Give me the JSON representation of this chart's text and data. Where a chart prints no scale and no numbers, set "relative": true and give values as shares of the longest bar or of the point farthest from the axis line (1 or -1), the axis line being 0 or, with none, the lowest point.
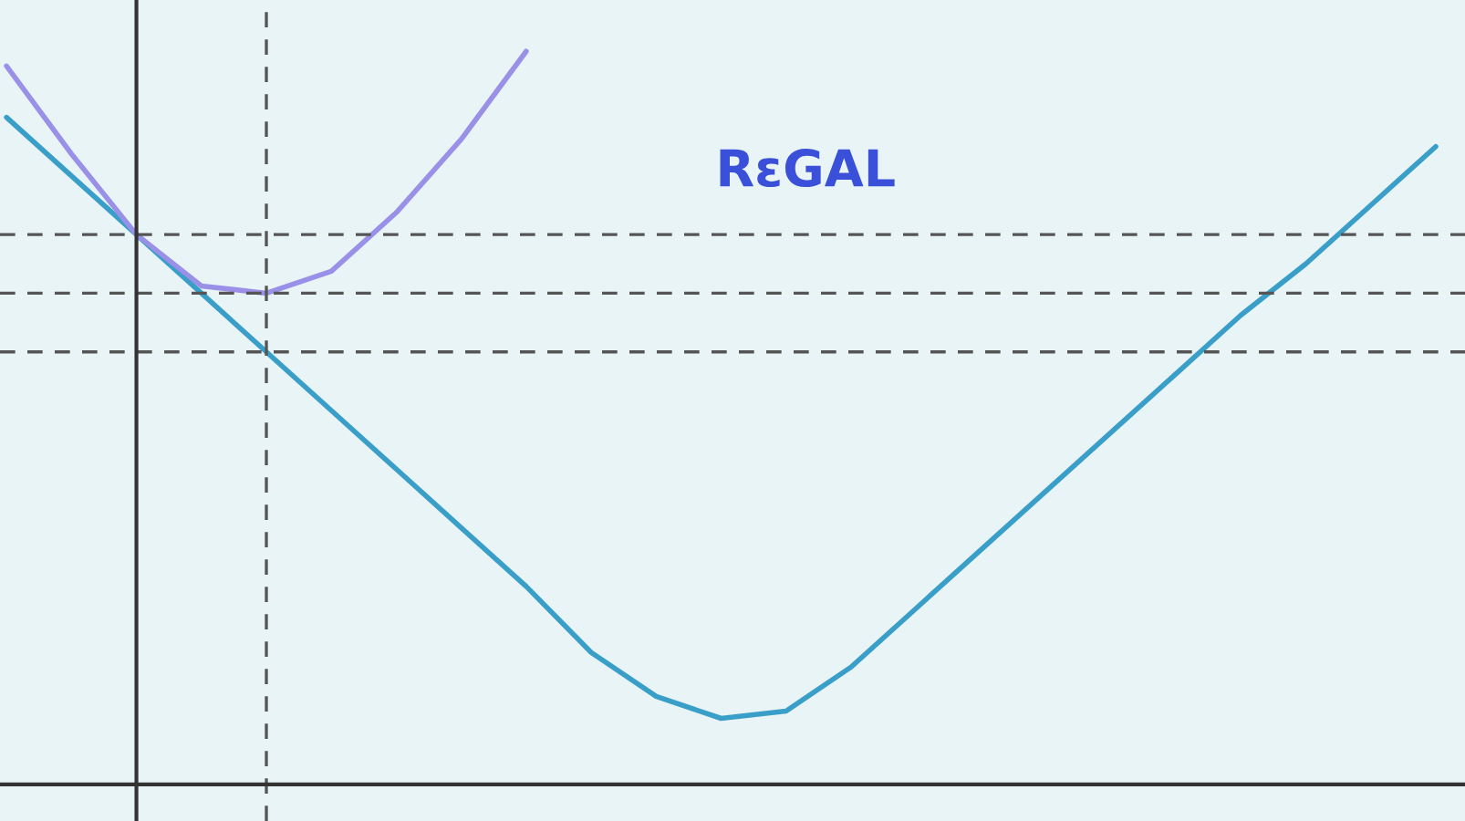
{
  "chart_data": {
    "type": "line",
    "relative": true,
    "categories": [
      null,
      null,
      null,
      null,
      null,
      null,
      null,
      null,
      null,
      null,
      null,
      null,
      null,
      null,
      null,
      null,
      null,
      null,
      null,
      null,
      null,
      null,
      null
    ],
    "series": [
      {
        "color": "#3a9fc8",
        "values": [
          0.91,
          0.83,
          0.75,
          0.67,
          0.59,
          0.51,
          0.43,
          0.35,
          0.27,
          0.18,
          0.12,
          0.09,
          0.1,
          0.16,
          0.24,
          0.32,
          0.4,
          0.48,
          0.56,
          0.64,
          0.71,
          0.79,
          0.87
        ]
      },
      {
        "color": "#9a90e8",
        "values": [
          0.98,
          0.86,
          0.75,
          0.68,
          0.67,
          0.7,
          0.78,
          0.88,
          1.0,
          null,
          null,
          null,
          null,
          null,
          null,
          null,
          null,
          null,
          null,
          null,
          null,
          null,
          null
        ]
      }
    ],
    "ref_lines": [
      {
        "axis": "y",
        "value": 0.75,
        "line_style": "dashed",
        "color": "#555555"
      },
      {
        "axis": "y",
        "value": 0.67,
        "line_style": "dashed",
        "color": "#555555"
      },
      {
        "axis": "y",
        "value": 0.59,
        "line_style": "dashed",
        "color": "#555555"
      }
    ],
    "annotations": [
      "RεGAL"
    ]
  }
}
